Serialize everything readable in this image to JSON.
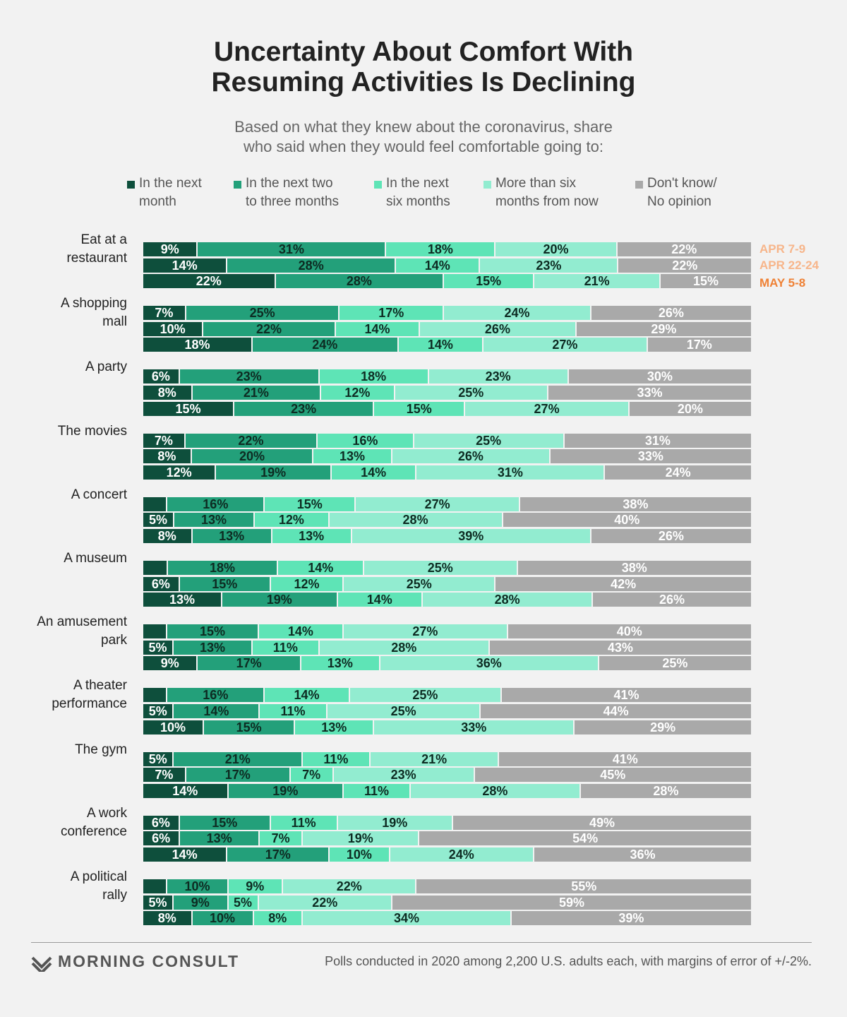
{
  "title": [
    "Uncertainty About Comfort With",
    "Resuming Activities Is Declining"
  ],
  "subtitle": [
    "Based on what they knew about the coronavirus, share",
    "who said when they would feel comfortable going to:"
  ],
  "legend": [
    {
      "line1": "In the next",
      "line2": "month"
    },
    {
      "line1": "In the next two",
      "line2": "to three months"
    },
    {
      "line1": "In the next",
      "line2": "six months"
    },
    {
      "line1": "More than six",
      "line2": "months from now"
    },
    {
      "line1": "Don't know/",
      "line2": "No opinion"
    }
  ],
  "colors": [
    "#0e4f3c",
    "#23a07a",
    "#5ee4b6",
    "#92ecd0",
    "#a9a9a9"
  ],
  "label_colors": [
    "#ffffff",
    "#0d2b22",
    "#0d2b22",
    "#0d2b22",
    "#ffffff"
  ],
  "date_colors": [
    "#f7b58a",
    "#f7b58a",
    "#ef8135"
  ],
  "chart_data": {
    "type": "bar",
    "orientation": "horizontal-stacked-100",
    "title": "Uncertainty About Comfort With Resuming Activities Is Declining",
    "series_names": [
      "In the next month",
      "In the next two to three months",
      "In the next six months",
      "More than six months from now",
      "Don't know/No opinion"
    ],
    "waves": [
      "APR 7-9",
      "APR 22-24",
      "MAY 5-8"
    ],
    "categories": [
      {
        "label": [
          "Eat at a",
          "restaurant"
        ],
        "rows": [
          {
            "values": [
              9,
              31,
              18,
              20,
              22
            ],
            "labels": [
              "9%",
              "31%",
              "18%",
              "20%",
              "22%"
            ]
          },
          {
            "values": [
              14,
              28,
              14,
              23,
              22
            ],
            "labels": [
              "14%",
              "28%",
              "14%",
              "23%",
              "22%"
            ]
          },
          {
            "values": [
              22,
              28,
              15,
              21,
              15
            ],
            "labels": [
              "22%",
              "28%",
              "15%",
              "21%",
              "15%"
            ]
          }
        ]
      },
      {
        "label": [
          "A shopping",
          "mall"
        ],
        "rows": [
          {
            "values": [
              7,
              25,
              17,
              24,
              26
            ],
            "labels": [
              "7%",
              "25%",
              "17%",
              "24%",
              "26%"
            ]
          },
          {
            "values": [
              10,
              22,
              14,
              26,
              29
            ],
            "labels": [
              "10%",
              "22%",
              "14%",
              "26%",
              "29%"
            ]
          },
          {
            "values": [
              18,
              24,
              14,
              27,
              17
            ],
            "labels": [
              "18%",
              "24%",
              "14%",
              "27%",
              "17%"
            ]
          }
        ]
      },
      {
        "label": [
          "A party"
        ],
        "rows": [
          {
            "values": [
              6,
              23,
              18,
              23,
              30
            ],
            "labels": [
              "6%",
              "23%",
              "18%",
              "23%",
              "30%"
            ]
          },
          {
            "values": [
              8,
              21,
              12,
              25,
              33
            ],
            "labels": [
              "8%",
              "21%",
              "12%",
              "25%",
              "33%"
            ]
          },
          {
            "values": [
              15,
              23,
              15,
              27,
              20
            ],
            "labels": [
              "15%",
              "23%",
              "15%",
              "27%",
              "20%"
            ]
          }
        ]
      },
      {
        "label": [
          "The movies"
        ],
        "rows": [
          {
            "values": [
              7,
              22,
              16,
              25,
              31
            ],
            "labels": [
              "7%",
              "22%",
              "16%",
              "25%",
              "31%"
            ]
          },
          {
            "values": [
              8,
              20,
              13,
              26,
              33
            ],
            "labels": [
              "8%",
              "20%",
              "13%",
              "26%",
              "33%"
            ]
          },
          {
            "values": [
              12,
              19,
              14,
              31,
              24
            ],
            "labels": [
              "12%",
              "19%",
              "14%",
              "31%",
              "24%"
            ]
          }
        ]
      },
      {
        "label": [
          "A concert"
        ],
        "rows": [
          {
            "values": [
              4,
              16,
              15,
              27,
              38
            ],
            "labels": [
              "",
              "16%",
              "15%",
              "27%",
              "38%"
            ]
          },
          {
            "values": [
              5,
              13,
              12,
              28,
              40
            ],
            "labels": [
              "5%",
              "13%",
              "12%",
              "28%",
              "40%"
            ]
          },
          {
            "values": [
              8,
              13,
              13,
              39,
              26
            ],
            "labels": [
              "8%",
              "13%",
              "13%",
              "39%",
              "26%"
            ]
          }
        ]
      },
      {
        "label": [
          "A museum"
        ],
        "rows": [
          {
            "values": [
              4,
              18,
              14,
              25,
              38
            ],
            "labels": [
              "",
              "18%",
              "14%",
              "25%",
              "38%"
            ]
          },
          {
            "values": [
              6,
              15,
              12,
              25,
              42
            ],
            "labels": [
              "6%",
              "15%",
              "12%",
              "25%",
              "42%"
            ]
          },
          {
            "values": [
              13,
              19,
              14,
              28,
              26
            ],
            "labels": [
              "13%",
              "19%",
              "14%",
              "28%",
              "26%"
            ]
          }
        ]
      },
      {
        "label": [
          "An amusement",
          "park"
        ],
        "rows": [
          {
            "values": [
              4,
              15,
              14,
              27,
              40
            ],
            "labels": [
              "",
              "15%",
              "14%",
              "27%",
              "40%"
            ]
          },
          {
            "values": [
              5,
              13,
              11,
              28,
              43
            ],
            "labels": [
              "5%",
              "13%",
              "11%",
              "28%",
              "43%"
            ]
          },
          {
            "values": [
              9,
              17,
              13,
              36,
              25
            ],
            "labels": [
              "9%",
              "17%",
              "13%",
              "36%",
              "25%"
            ]
          }
        ]
      },
      {
        "label": [
          "A theater",
          "performance"
        ],
        "rows": [
          {
            "values": [
              4,
              16,
              14,
              25,
              41
            ],
            "labels": [
              "",
              "16%",
              "14%",
              "25%",
              "41%"
            ]
          },
          {
            "values": [
              5,
              14,
              11,
              25,
              44
            ],
            "labels": [
              "5%",
              "14%",
              "11%",
              "25%",
              "44%"
            ]
          },
          {
            "values": [
              10,
              15,
              13,
              33,
              29
            ],
            "labels": [
              "10%",
              "15%",
              "13%",
              "33%",
              "29%"
            ]
          }
        ]
      },
      {
        "label": [
          "The gym"
        ],
        "rows": [
          {
            "values": [
              5,
              21,
              11,
              21,
              41
            ],
            "labels": [
              "5%",
              "21%",
              "11%",
              "21%",
              "41%"
            ]
          },
          {
            "values": [
              7,
              17,
              7,
              23,
              45
            ],
            "labels": [
              "7%",
              "17%",
              "7%",
              "23%",
              "45%"
            ]
          },
          {
            "values": [
              14,
              19,
              11,
              28,
              28
            ],
            "labels": [
              "14%",
              "19%",
              "11%",
              "28%",
              "28%"
            ]
          }
        ]
      },
      {
        "label": [
          "A work",
          "conference"
        ],
        "rows": [
          {
            "values": [
              6,
              15,
              11,
              19,
              49
            ],
            "labels": [
              "6%",
              "15%",
              "11%",
              "19%",
              "49%"
            ]
          },
          {
            "values": [
              6,
              13,
              7,
              19,
              54
            ],
            "labels": [
              "6%",
              "13%",
              "7%",
              "19%",
              "54%"
            ]
          },
          {
            "values": [
              14,
              17,
              10,
              24,
              36
            ],
            "labels": [
              "14%",
              "17%",
              "10%",
              "24%",
              "36%"
            ]
          }
        ]
      },
      {
        "label": [
          "A political",
          "rally"
        ],
        "rows": [
          {
            "values": [
              4,
              10,
              9,
              22,
              55
            ],
            "labels": [
              "",
              "10%",
              "9%",
              "22%",
              "55%"
            ]
          },
          {
            "values": [
              5,
              9,
              5,
              22,
              59
            ],
            "labels": [
              "5%",
              "9%",
              "5%",
              "22%",
              "59%"
            ]
          },
          {
            "values": [
              8,
              10,
              8,
              34,
              39
            ],
            "labels": [
              "8%",
              "10%",
              "8%",
              "34%",
              "39%"
            ]
          }
        ]
      }
    ]
  },
  "footer": {
    "brand": "MORNING CONSULT",
    "note": "Polls conducted in 2020 among 2,200 U.S. adults each, with margins of error of +/-2%."
  }
}
